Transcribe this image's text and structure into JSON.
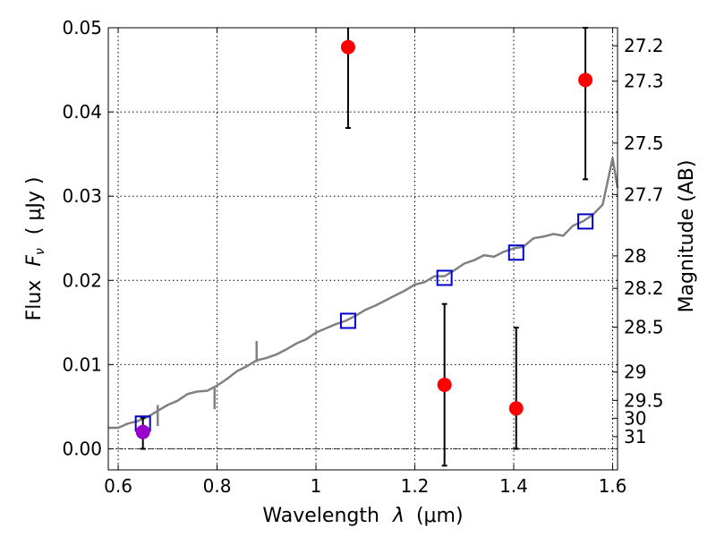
{
  "chart_data": {
    "type": "scatter",
    "xlabel_text": "Wavelength",
    "xlabel_unit": "(μm)",
    "ylabel_text": "Flux",
    "ylabel_unit": "( μJy )",
    "y2label": "Magnitude (AB)",
    "xlim": [
      0.58,
      1.61
    ],
    "ylim": [
      -0.0025,
      0.05
    ],
    "grid": true,
    "x_ticks": [
      0.6,
      0.8,
      1.0,
      1.2,
      1.4,
      1.6
    ],
    "x_tick_labels": [
      "0.6",
      "0.8",
      "1",
      "1.2",
      "1.4",
      "1.6"
    ],
    "y_ticks": [
      0.0,
      0.01,
      0.02,
      0.03,
      0.04,
      0.05
    ],
    "y_tick_labels": [
      "0.00",
      "0.01",
      "0.02",
      "0.03",
      "0.04",
      "0.05"
    ],
    "y2_tick_labels": [
      "27.2",
      "27.3",
      "27.5",
      "27.7",
      "28",
      "28.2",
      "28.5",
      "29",
      "29.5",
      "30",
      "31"
    ],
    "y2_tick_values": [
      27.2,
      27.3,
      27.5,
      27.7,
      28.0,
      28.2,
      28.5,
      29.0,
      29.5,
      30.0,
      31.0
    ],
    "zero_line": 0.0,
    "series": [
      {
        "kind": "spectrum-line",
        "color": "#808080",
        "x": [
          0.58,
          0.6,
          0.62,
          0.64,
          0.66,
          0.68,
          0.7,
          0.72,
          0.74,
          0.76,
          0.78,
          0.8,
          0.82,
          0.84,
          0.86,
          0.88,
          0.9,
          0.92,
          0.94,
          0.96,
          0.98,
          1.0,
          1.02,
          1.04,
          1.06,
          1.08,
          1.1,
          1.12,
          1.14,
          1.16,
          1.18,
          1.2,
          1.22,
          1.24,
          1.26,
          1.28,
          1.3,
          1.32,
          1.34,
          1.36,
          1.38,
          1.4,
          1.42,
          1.44,
          1.46,
          1.48,
          1.5,
          1.52,
          1.54,
          1.56,
          1.58,
          1.6,
          1.61
        ],
        "y": [
          0.0025,
          0.0025,
          0.003,
          0.0033,
          0.0038,
          0.0045,
          0.0052,
          0.0057,
          0.0065,
          0.0068,
          0.0069,
          0.0075,
          0.0083,
          0.0092,
          0.0098,
          0.0105,
          0.0108,
          0.0112,
          0.0118,
          0.0125,
          0.013,
          0.0138,
          0.0143,
          0.0148,
          0.0152,
          0.0158,
          0.0165,
          0.017,
          0.0176,
          0.0182,
          0.0188,
          0.0195,
          0.0198,
          0.0205,
          0.0205,
          0.0212,
          0.022,
          0.0224,
          0.023,
          0.0228,
          0.0234,
          0.0238,
          0.024,
          0.025,
          0.0252,
          0.0255,
          0.0253,
          0.0265,
          0.027,
          0.0278,
          0.029,
          0.0345,
          0.031
        ],
        "spikes": [
          {
            "x": 0.88,
            "y": 0.0128
          },
          {
            "x": 0.68,
            "y": 0.0052
          },
          {
            "x": 0.795,
            "y": 0.0072
          }
        ]
      },
      {
        "kind": "model-squares",
        "color": "#0000cc",
        "x": [
          0.65,
          1.065,
          1.26,
          1.405,
          1.545
        ],
        "y": [
          0.003,
          0.0152,
          0.0203,
          0.0233,
          0.027
        ]
      },
      {
        "kind": "observed-points",
        "color": "#ff0000",
        "x": [
          1.065,
          1.545,
          1.26,
          1.405
        ],
        "y": [
          0.0477,
          0.0438,
          0.0076,
          0.0048
        ],
        "yerr_low": [
          0.0096,
          0.0118,
          0.0096,
          0.0048
        ],
        "yerr_high": [
          0.0023,
          0.0062,
          0.0096,
          0.0096
        ]
      },
      {
        "kind": "detected-point",
        "color": "#9900cc",
        "x": [
          0.65
        ],
        "y": [
          0.002
        ],
        "yerr_low": [
          0.002
        ],
        "yerr_high": [
          0.0017
        ]
      }
    ]
  }
}
